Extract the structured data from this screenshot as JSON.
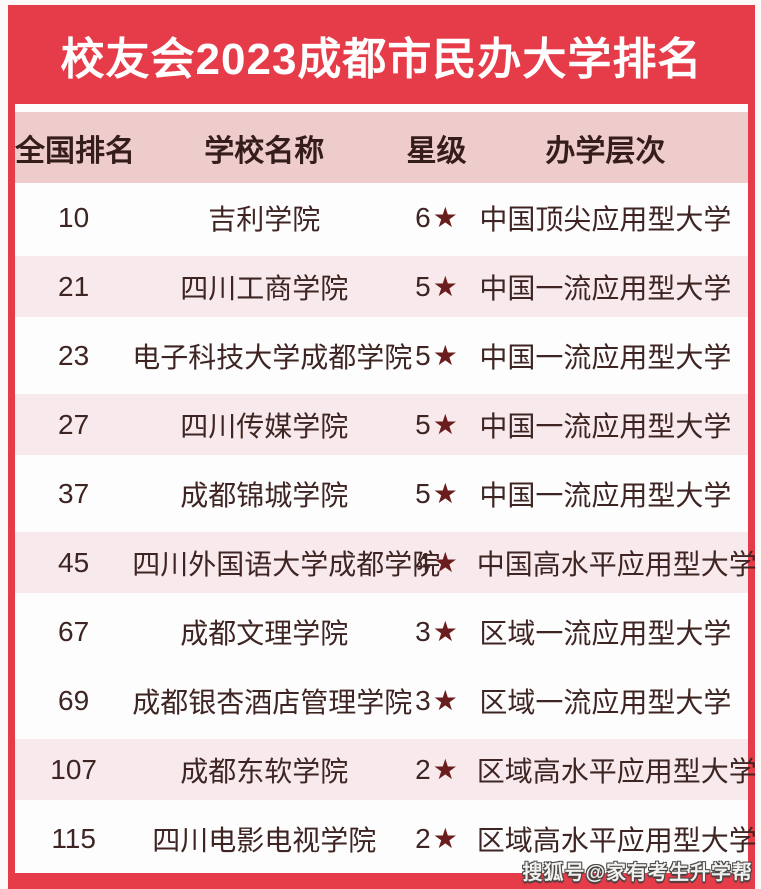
{
  "page": {
    "watermark": "搜狐号@家有考生升学帮"
  },
  "chart_data": {
    "type": "table",
    "title": "校友会2023成都市民办大学排名",
    "columns": [
      {
        "label": "全国排名"
      },
      {
        "label": "学校名称"
      },
      {
        "label": "星级"
      },
      {
        "label": "办学层次"
      }
    ],
    "rows": [
      {
        "rank": "10",
        "name": "吉利学院",
        "stars": "6★",
        "level": "中国顶尖应用型大学",
        "highlighted": false
      },
      {
        "rank": "21",
        "name": "四川工商学院",
        "stars": "5★",
        "level": "中国一流应用型大学",
        "highlighted": true
      },
      {
        "rank": "23",
        "name": "电子科技大学成都学院",
        "stars": "5★",
        "level": "中国一流应用型大学",
        "highlighted": false
      },
      {
        "rank": "27",
        "name": "四川传媒学院",
        "stars": "5★",
        "level": "中国一流应用型大学",
        "highlighted": true
      },
      {
        "rank": "37",
        "name": "成都锦城学院",
        "stars": "5★",
        "level": "中国一流应用型大学",
        "highlighted": false
      },
      {
        "rank": "45",
        "name": "四川外国语大学成都学院",
        "stars": "4★",
        "level": "中国高水平应用型大学",
        "highlighted": true
      },
      {
        "rank": "67",
        "name": "成都文理学院",
        "stars": "3★",
        "level": "区域一流应用型大学",
        "highlighted": false
      },
      {
        "rank": "69",
        "name": "成都银杏酒店管理学院",
        "stars": "3★",
        "level": "区域一流应用型大学",
        "highlighted": false
      },
      {
        "rank": "107",
        "name": "成都东软学院",
        "stars": "2★",
        "level": "区域高水平应用型大学",
        "highlighted": true
      },
      {
        "rank": "115",
        "name": "四川电影电视学院",
        "stars": "2★",
        "level": "区域高水平应用型大学",
        "highlighted": false
      }
    ]
  },
  "colors": {
    "card_red": "#e63c49",
    "header_pink": "#eecccb",
    "row_pink": "#f8eaec",
    "text_dark": "#3e2523",
    "star_red": "#6b1d1d",
    "title_white": "#ffffff"
  }
}
